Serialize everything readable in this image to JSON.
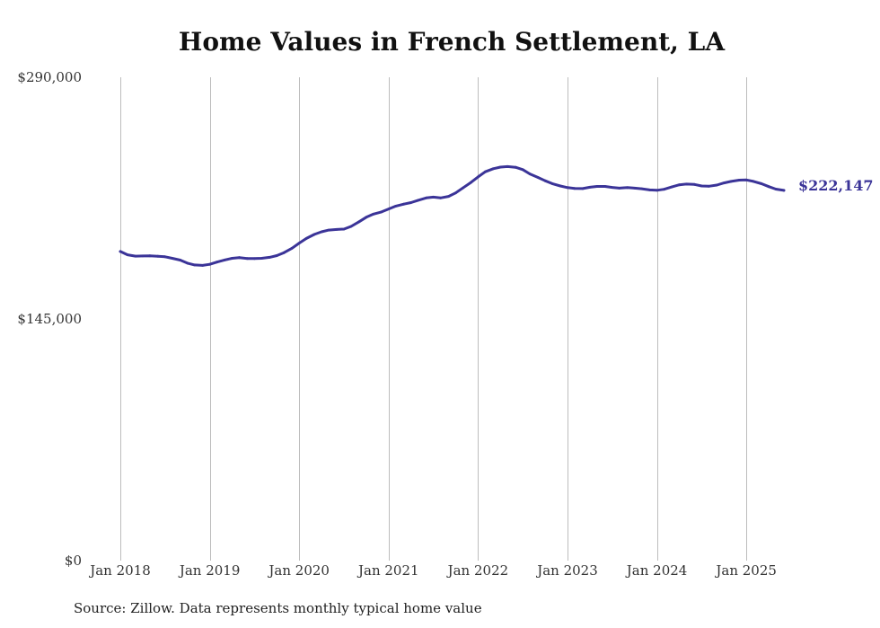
{
  "chart_data": {
    "type": "line",
    "title": "Home Values in French Settlement, LA",
    "xlabel": "",
    "ylabel": "",
    "ylim": [
      0,
      290000
    ],
    "y_ticks": [
      {
        "value": 0,
        "label": "$0"
      },
      {
        "value": 145000,
        "label": "$145,000"
      },
      {
        "value": 290000,
        "label": "$290,000"
      }
    ],
    "x_ticks": [
      {
        "value": 2018.0,
        "label": "Jan 2018"
      },
      {
        "value": 2019.0,
        "label": "Jan 2019"
      },
      {
        "value": 2020.0,
        "label": "Jan 2020"
      },
      {
        "value": 2021.0,
        "label": "Jan 2021"
      },
      {
        "value": 2022.0,
        "label": "Jan 2022"
      },
      {
        "value": 2023.0,
        "label": "Jan 2023"
      },
      {
        "value": 2024.0,
        "label": "Jan 2024"
      },
      {
        "value": 2025.0,
        "label": "Jan 2025"
      }
    ],
    "xlim": [
      2018.0,
      2025.42
    ],
    "grid": "vertical",
    "series": [
      {
        "name": "Typical home value",
        "color": "#3b3498",
        "end_label": "$222,147",
        "points": [
          [
            2018.0,
            185500
          ],
          [
            2018.08,
            183500
          ],
          [
            2018.17,
            182700
          ],
          [
            2018.25,
            182800
          ],
          [
            2018.33,
            182900
          ],
          [
            2018.42,
            182600
          ],
          [
            2018.5,
            182300
          ],
          [
            2018.58,
            181400
          ],
          [
            2018.67,
            180300
          ],
          [
            2018.75,
            178500
          ],
          [
            2018.83,
            177400
          ],
          [
            2018.92,
            177100
          ],
          [
            2019.0,
            177800
          ],
          [
            2019.08,
            179100
          ],
          [
            2019.17,
            180400
          ],
          [
            2019.25,
            181400
          ],
          [
            2019.33,
            181800
          ],
          [
            2019.42,
            181300
          ],
          [
            2019.5,
            181200
          ],
          [
            2019.58,
            181400
          ],
          [
            2019.67,
            182000
          ],
          [
            2019.75,
            183000
          ],
          [
            2019.83,
            184800
          ],
          [
            2019.92,
            187400
          ],
          [
            2020.0,
            190500
          ],
          [
            2020.08,
            193300
          ],
          [
            2020.17,
            195700
          ],
          [
            2020.25,
            197300
          ],
          [
            2020.33,
            198300
          ],
          [
            2020.42,
            198700
          ],
          [
            2020.5,
            198900
          ],
          [
            2020.58,
            200500
          ],
          [
            2020.67,
            203300
          ],
          [
            2020.75,
            206000
          ],
          [
            2020.83,
            207900
          ],
          [
            2020.92,
            209200
          ],
          [
            2021.0,
            211000
          ],
          [
            2021.08,
            212700
          ],
          [
            2021.17,
            213900
          ],
          [
            2021.25,
            214800
          ],
          [
            2021.33,
            216200
          ],
          [
            2021.42,
            217600
          ],
          [
            2021.5,
            218100
          ],
          [
            2021.58,
            217600
          ],
          [
            2021.67,
            218500
          ],
          [
            2021.75,
            220600
          ],
          [
            2021.83,
            223600
          ],
          [
            2021.92,
            226900
          ],
          [
            2022.0,
            230200
          ],
          [
            2022.08,
            233300
          ],
          [
            2022.17,
            235100
          ],
          [
            2022.25,
            236100
          ],
          [
            2022.33,
            236400
          ],
          [
            2022.42,
            236000
          ],
          [
            2022.5,
            234600
          ],
          [
            2022.58,
            232000
          ],
          [
            2022.67,
            229900
          ],
          [
            2022.75,
            227900
          ],
          [
            2022.83,
            226200
          ],
          [
            2022.92,
            224800
          ],
          [
            2023.0,
            223800
          ],
          [
            2023.08,
            223300
          ],
          [
            2023.17,
            223200
          ],
          [
            2023.25,
            224000
          ],
          [
            2023.33,
            224500
          ],
          [
            2023.42,
            224500
          ],
          [
            2023.5,
            223900
          ],
          [
            2023.58,
            223500
          ],
          [
            2023.67,
            223800
          ],
          [
            2023.75,
            223500
          ],
          [
            2023.83,
            223100
          ],
          [
            2023.92,
            222400
          ],
          [
            2024.0,
            222200
          ],
          [
            2024.08,
            222800
          ],
          [
            2024.17,
            224300
          ],
          [
            2024.25,
            225500
          ],
          [
            2024.33,
            225900
          ],
          [
            2024.42,
            225700
          ],
          [
            2024.5,
            224800
          ],
          [
            2024.58,
            224600
          ],
          [
            2024.67,
            225300
          ],
          [
            2024.75,
            226600
          ],
          [
            2024.83,
            227500
          ],
          [
            2024.92,
            228300
          ],
          [
            2025.0,
            228400
          ],
          [
            2025.08,
            227500
          ],
          [
            2025.17,
            226100
          ],
          [
            2025.25,
            224400
          ],
          [
            2025.33,
            222900
          ],
          [
            2025.42,
            222147
          ]
        ]
      }
    ]
  },
  "footer": {
    "source": "Source: Zillow. Data represents monthly typical home value"
  }
}
